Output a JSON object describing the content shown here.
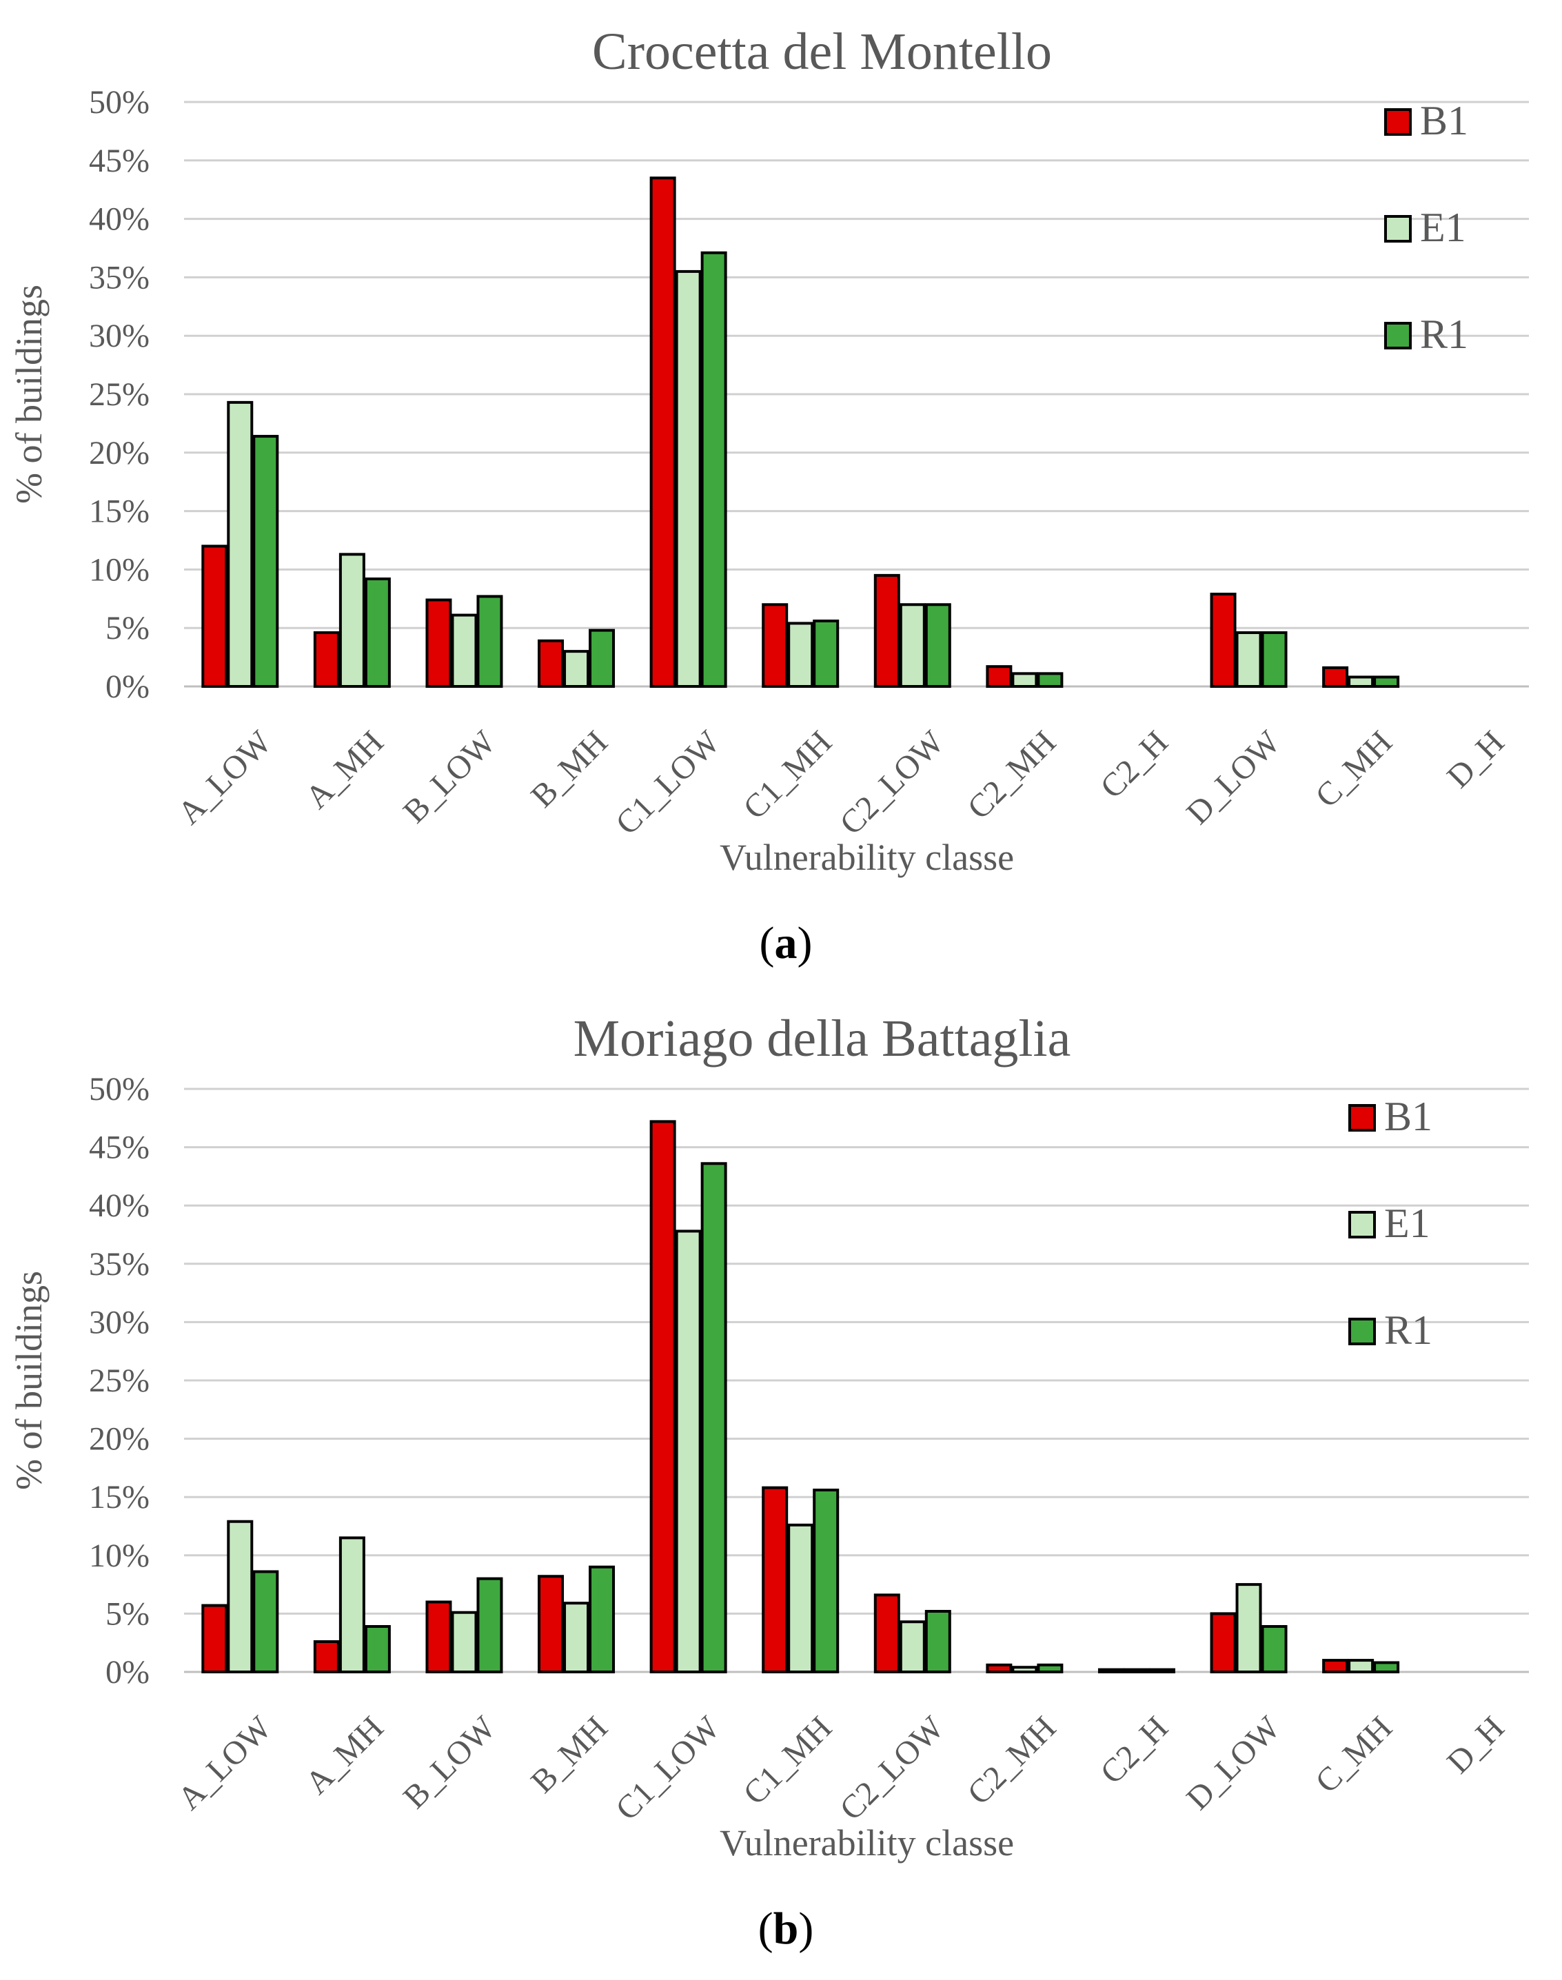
{
  "colors": {
    "B1": "#e00000",
    "E1": "#c6e8c0",
    "R1": "#3fa83f"
  },
  "chart_data": [
    {
      "type": "bar",
      "panel": "(a)",
      "panel_letter": "a",
      "title": "Crocetta  del Montello",
      "xlabel": "Vulnerability classe",
      "ylabel": "% of buildings",
      "ylim": [
        0,
        50
      ],
      "yticks": [
        "0%",
        "5%",
        "10%",
        "15%",
        "20%",
        "25%",
        "30%",
        "35%",
        "40%",
        "45%",
        "50%"
      ],
      "grid": true,
      "legend": "top-right",
      "categories": [
        "A_LOW",
        "A_MH",
        "B_LOW",
        "B_MH",
        "C1_LOW",
        "C1_MH",
        "C2_LOW",
        "C2_MH",
        "C2_H",
        "D_LOW",
        "C_MH",
        "D_H"
      ],
      "series": [
        {
          "name": "B1",
          "values": [
            12.0,
            4.6,
            7.4,
            3.9,
            43.5,
            7.0,
            9.5,
            1.7,
            0,
            7.9,
            1.6,
            0
          ]
        },
        {
          "name": "E1",
          "values": [
            24.3,
            11.3,
            6.1,
            3.0,
            35.5,
            5.4,
            7.0,
            1.1,
            0,
            4.6,
            0.8,
            0
          ]
        },
        {
          "name": "R1",
          "values": [
            21.4,
            9.2,
            7.7,
            4.8,
            37.1,
            5.6,
            7.0,
            1.1,
            0,
            4.6,
            0.8,
            0
          ]
        }
      ]
    },
    {
      "type": "bar",
      "panel": "(b)",
      "panel_letter": "b",
      "title": "Moriago  della Battaglia",
      "xlabel": "Vulnerability classe",
      "ylabel": "% of buildings",
      "ylim": [
        0,
        50
      ],
      "yticks": [
        "0%",
        "5%",
        "10%",
        "15%",
        "20%",
        "25%",
        "30%",
        "35%",
        "40%",
        "45%",
        "50%"
      ],
      "grid": true,
      "legend": "top-right",
      "categories": [
        "A_LOW",
        "A_MH",
        "B_LOW",
        "B_MH",
        "C1_LOW",
        "C1_MH",
        "C2_LOW",
        "C2_MH",
        "C2_H",
        "D_LOW",
        "C_MH",
        "D_H"
      ],
      "series": [
        {
          "name": "B1",
          "values": [
            5.7,
            2.6,
            6.0,
            8.2,
            47.2,
            15.8,
            6.6,
            0.6,
            0.2,
            5.0,
            1.0,
            0
          ]
        },
        {
          "name": "E1",
          "values": [
            12.9,
            11.5,
            5.1,
            5.9,
            37.8,
            12.6,
            4.3,
            0.4,
            0.2,
            7.5,
            1.0,
            0
          ]
        },
        {
          "name": "R1",
          "values": [
            8.6,
            3.9,
            8.0,
            9.0,
            43.6,
            15.6,
            5.2,
            0.6,
            0.2,
            3.9,
            0.8,
            0
          ]
        }
      ]
    }
  ]
}
